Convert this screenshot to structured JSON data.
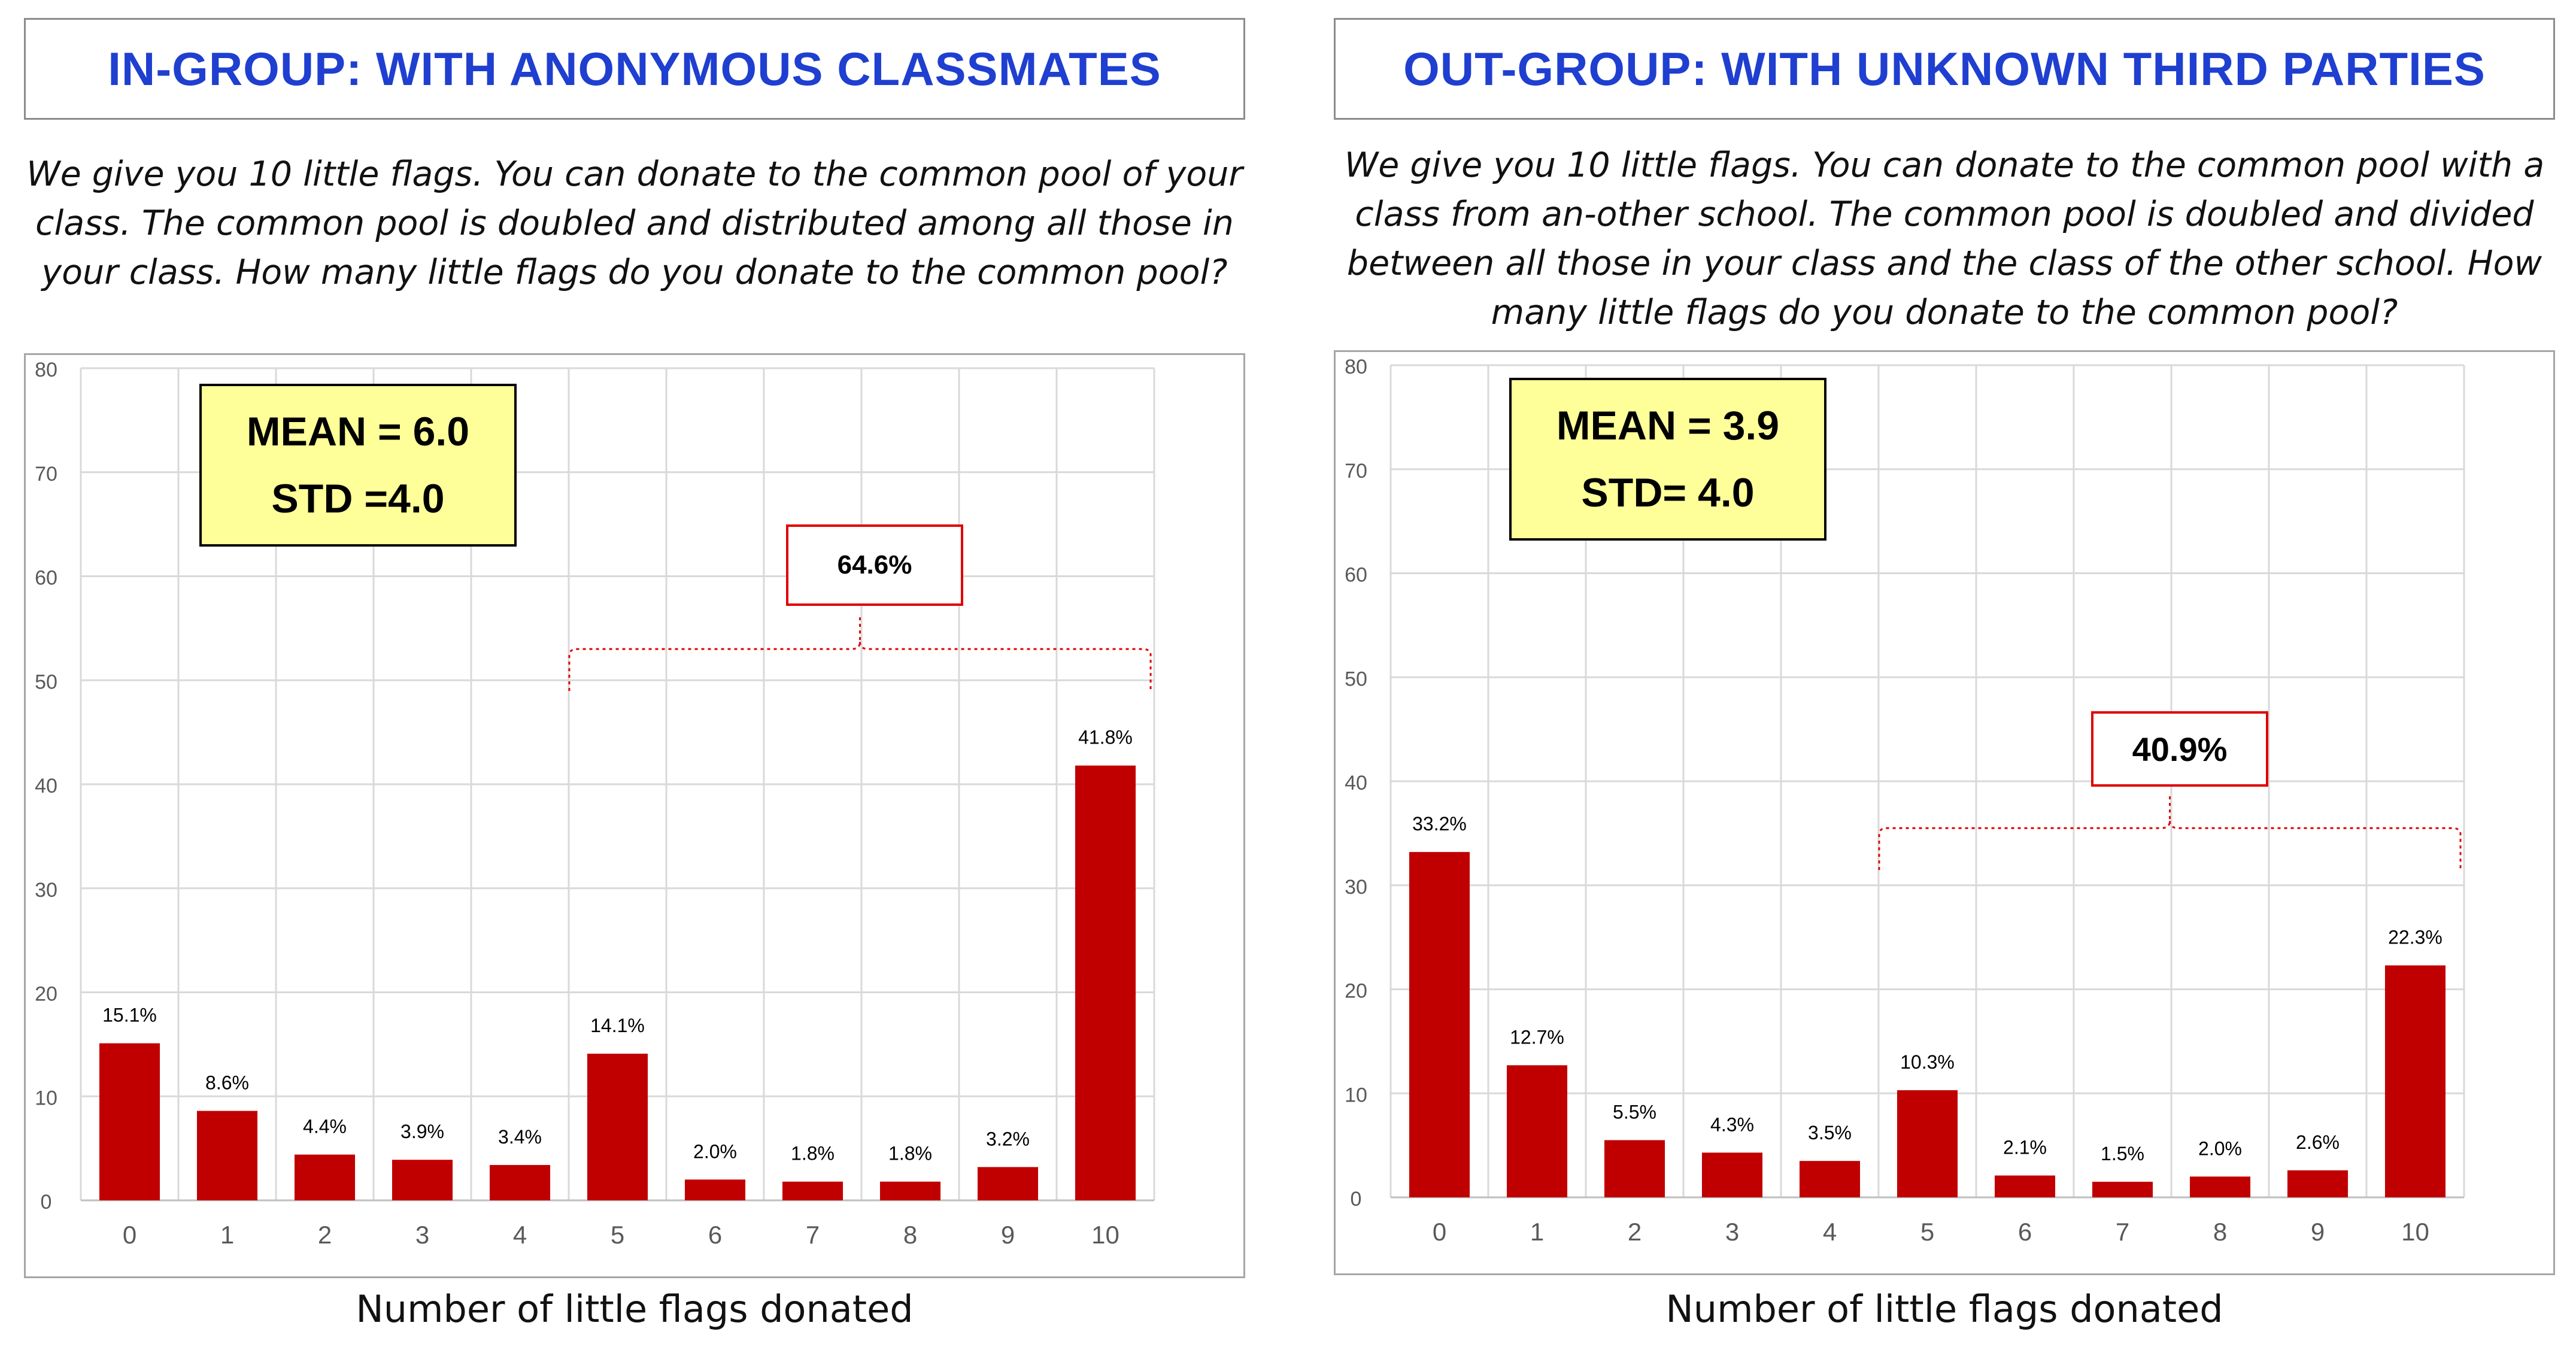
{
  "colors": {
    "title": "#1f3fd0",
    "bar": "#c00000",
    "stat_box_bg": "#ffff99",
    "bracket": "#e00000",
    "grid": "#d9d9d9"
  },
  "panels": [
    {
      "title": "IN-GROUP: WITH ANONYMOUS CLASSMATES",
      "description": "We give you 10 little flags. You can donate to the common pool of your class. The common pool is doubled and distributed among all those in your class. How many little flags do you donate to the common pool?",
      "stats": {
        "mean": "MEAN = 6.0",
        "std": "STD =4.0"
      },
      "callout": "64.6%",
      "xlabel": "Number of little flags donated"
    },
    {
      "title": "OUT-GROUP: WITH UNKNOWN THIRD PARTIES",
      "description": "We give you 10 little flags. You can donate to the common pool with a class from an-other school. The common pool is doubled and divided between all those in your class and the class of the other school. How many little flags do you donate to the common pool?",
      "stats": {
        "mean": "MEAN = 3.9",
        "std": "STD= 4.0"
      },
      "callout": "40.9%",
      "xlabel": "Number of little flags donated"
    }
  ],
  "chart_data": [
    {
      "type": "bar",
      "categories": [
        "0",
        "1",
        "2",
        "3",
        "4",
        "5",
        "6",
        "7",
        "8",
        "9",
        "10"
      ],
      "values": [
        15.1,
        8.6,
        4.4,
        3.9,
        3.4,
        14.1,
        2.0,
        1.8,
        1.8,
        3.2,
        41.8
      ],
      "data_labels": [
        "15.1%",
        "8.6%",
        "4.4%",
        "3.9%",
        "3.4%",
        "14.1%",
        "2.0%",
        "1.8%",
        "1.8%",
        "3.2%",
        "41.8%"
      ],
      "ylim": [
        0,
        80
      ],
      "yticks": [
        "0",
        "10",
        "20",
        "30",
        "40",
        "50",
        "60",
        "70",
        "80"
      ],
      "xlabel": "Number of little flags donated",
      "grid": true,
      "bracket": {
        "from_category": "5",
        "to_category": "10",
        "level": 53,
        "label": "64.6%",
        "label_level": 60.5
      }
    },
    {
      "type": "bar",
      "categories": [
        "0",
        "1",
        "2",
        "3",
        "4",
        "5",
        "6",
        "7",
        "8",
        "9",
        "10"
      ],
      "values": [
        33.2,
        12.7,
        5.5,
        4.3,
        3.5,
        10.3,
        2.1,
        1.5,
        2.0,
        2.6,
        22.3
      ],
      "data_labels": [
        "33.2%",
        "12.7%",
        "5.5%",
        "4.3%",
        "3.5%",
        "10.3%",
        "2.1%",
        "1.5%",
        "2.0%",
        "2.6%",
        "22.3%"
      ],
      "ylim": [
        0,
        80
      ],
      "yticks": [
        "0",
        "10",
        "20",
        "30",
        "40",
        "50",
        "60",
        "70",
        "80"
      ],
      "xlabel": "Number of little flags donated",
      "grid": true,
      "bracket": {
        "from_category": "5",
        "to_category": "10",
        "level": 35.5,
        "label": "40.9%",
        "label_level": 44
      }
    }
  ]
}
